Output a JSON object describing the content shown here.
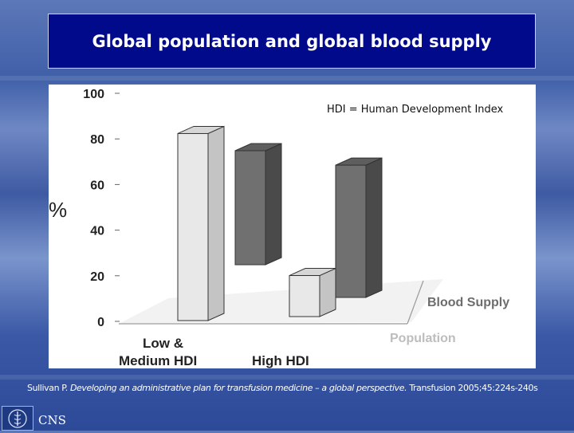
{
  "slide": {
    "title": "Global population and global blood supply",
    "note": "HDI = Human Development Index",
    "citation": {
      "author": "Sullivan P.",
      "article": "Developing an administrative plan for transfusion medicine – a global perspective.",
      "journal": "Transfusion 2005;45:224s-240s"
    },
    "logo_text": "CNS"
  },
  "colors": {
    "title_background": "#000a8a",
    "population_bar": "#e8e8e8",
    "blood_supply_bar": "#707070"
  },
  "chart_data": {
    "type": "bar",
    "title": "",
    "ylabel": "%",
    "ylim": [
      0,
      100
    ],
    "yticks": [
      "0",
      "20",
      "40",
      "60",
      "80",
      "100"
    ],
    "categories": [
      "Low & Medium HDI",
      "High HDI"
    ],
    "category_lines": [
      [
        "Low &",
        "Medium HDI"
      ],
      [
        "High HDI"
      ]
    ],
    "series": [
      {
        "name": "Population",
        "values": [
          82,
          18
        ]
      },
      {
        "name": "Blood Supply",
        "values": [
          50,
          58
        ]
      }
    ],
    "legend": "series labels along the depth axis (right)",
    "grid": false
  }
}
